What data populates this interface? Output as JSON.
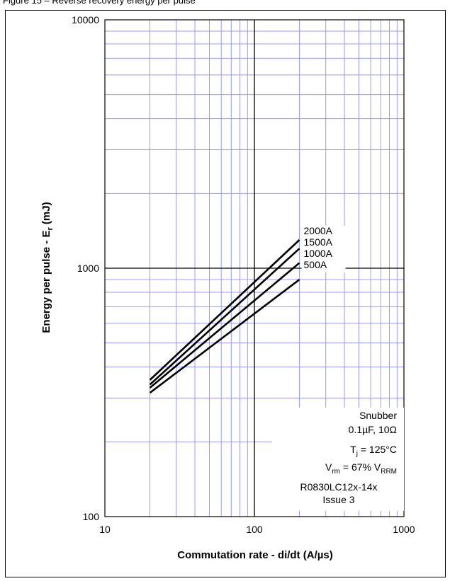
{
  "header_strip_text": "Figure 15 – Reverse recovery energy per pulse",
  "chart_data": {
    "type": "line",
    "xlabel": "Commutation rate - di/dt (A/µs)",
    "ylabel_parts": {
      "main": "Energy per pulse - E",
      "sub": "r",
      "unit": " (mJ)"
    },
    "x_scale": "log",
    "y_scale": "log",
    "xlim": [
      10,
      1000
    ],
    "ylim": [
      100,
      10000
    ],
    "x_ticks": [
      "10",
      "100",
      "1000"
    ],
    "y_ticks": [
      "100",
      "1000",
      "10000"
    ],
    "grid": true,
    "series": [
      {
        "name": "2000A",
        "x": [
          20,
          200
        ],
        "y": [
          355,
          1300
        ]
      },
      {
        "name": "1500A",
        "x": [
          20,
          200
        ],
        "y": [
          340,
          1200
        ]
      },
      {
        "name": "1000A",
        "x": [
          20,
          200
        ],
        "y": [
          330,
          1050
        ]
      },
      {
        "name": "500A",
        "x": [
          20,
          200
        ],
        "y": [
          315,
          900
        ]
      }
    ],
    "annotations": {
      "snubber": "Snubber",
      "snubber_values": "0.1µF, 10Ω",
      "tj": {
        "main": "T",
        "sub": "j",
        "rest": " = 125°C"
      },
      "vrm": {
        "main": "V",
        "sub": "rm",
        "mid": " = 67% V",
        "sub2": "RRM"
      },
      "part_number": "R0830LC12x-14x",
      "issue": "Issue 3"
    },
    "colors": {
      "grid": "#9999ff",
      "major_grid": "#000000",
      "line": "#000000"
    }
  }
}
